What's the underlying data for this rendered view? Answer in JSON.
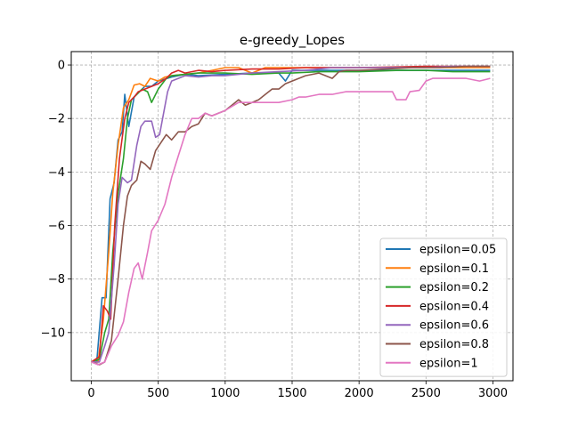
{
  "chart_data": {
    "type": "line",
    "title": "e-greedy_Lopes",
    "xlabel": "",
    "ylabel": "",
    "xlim": [
      -150,
      3150
    ],
    "ylim": [
      -11.8,
      0.5
    ],
    "x_ticks": [
      0,
      500,
      1000,
      1500,
      2000,
      2500,
      3000
    ],
    "x_tick_labels": [
      "0",
      "500",
      "1000",
      "1500",
      "2000",
      "2500",
      "3000"
    ],
    "y_ticks": [
      0,
      -2,
      -4,
      -6,
      -8,
      -10
    ],
    "y_tick_labels": [
      "0",
      "−2",
      "−4",
      "−6",
      "−8",
      "−10"
    ],
    "grid": true,
    "grid_style": "dashed",
    "legend_position": "lower right",
    "series": [
      {
        "name": "epsilon=0.05",
        "color": "#1f77b4",
        "points": [
          [
            0,
            -11.1
          ],
          [
            40,
            -11.1
          ],
          [
            80,
            -8.7
          ],
          [
            110,
            -8.7
          ],
          [
            140,
            -5
          ],
          [
            170,
            -4.4
          ],
          [
            200,
            -2.8
          ],
          [
            230,
            -2.5
          ],
          [
            250,
            -1.1
          ],
          [
            280,
            -2.3
          ],
          [
            320,
            -1.2
          ],
          [
            360,
            -1
          ],
          [
            400,
            -0.8
          ],
          [
            450,
            -0.8
          ],
          [
            500,
            -0.6
          ],
          [
            600,
            -0.45
          ],
          [
            700,
            -0.35
          ],
          [
            800,
            -0.4
          ],
          [
            1000,
            -0.35
          ],
          [
            1200,
            -0.3
          ],
          [
            1400,
            -0.3
          ],
          [
            1450,
            -0.6
          ],
          [
            1500,
            -0.2
          ],
          [
            1800,
            -0.2
          ],
          [
            2000,
            -0.2
          ],
          [
            2200,
            -0.2
          ],
          [
            2400,
            -0.2
          ],
          [
            2700,
            -0.2
          ],
          [
            2980,
            -0.2
          ]
        ]
      },
      {
        "name": "epsilon=0.1",
        "color": "#ff7f0e",
        "points": [
          [
            0,
            -11.1
          ],
          [
            50,
            -11.1
          ],
          [
            90,
            -9.5
          ],
          [
            130,
            -7
          ],
          [
            160,
            -4.8
          ],
          [
            200,
            -3
          ],
          [
            240,
            -1.6
          ],
          [
            280,
            -1.3
          ],
          [
            320,
            -0.75
          ],
          [
            360,
            -0.7
          ],
          [
            400,
            -0.8
          ],
          [
            440,
            -0.5
          ],
          [
            500,
            -0.6
          ],
          [
            550,
            -0.45
          ],
          [
            600,
            -0.4
          ],
          [
            700,
            -0.35
          ],
          [
            800,
            -0.3
          ],
          [
            900,
            -0.2
          ],
          [
            1000,
            -0.1
          ],
          [
            1100,
            -0.1
          ],
          [
            1200,
            -0.3
          ],
          [
            1300,
            -0.1
          ],
          [
            1500,
            -0.1
          ],
          [
            1800,
            -0.1
          ],
          [
            2000,
            -0.1
          ],
          [
            2500,
            -0.1
          ],
          [
            2980,
            -0.1
          ]
        ]
      },
      {
        "name": "epsilon=0.2",
        "color": "#2ca02c",
        "points": [
          [
            0,
            -11.1
          ],
          [
            60,
            -11
          ],
          [
            100,
            -10
          ],
          [
            130,
            -9.5
          ],
          [
            160,
            -7
          ],
          [
            200,
            -4.8
          ],
          [
            240,
            -3.5
          ],
          [
            270,
            -2
          ],
          [
            300,
            -1.3
          ],
          [
            340,
            -1.1
          ],
          [
            380,
            -0.9
          ],
          [
            420,
            -1
          ],
          [
            450,
            -1.4
          ],
          [
            500,
            -0.9
          ],
          [
            560,
            -0.5
          ],
          [
            600,
            -0.4
          ],
          [
            700,
            -0.35
          ],
          [
            800,
            -0.3
          ],
          [
            900,
            -0.3
          ],
          [
            1000,
            -0.3
          ],
          [
            1200,
            -0.35
          ],
          [
            1400,
            -0.3
          ],
          [
            1500,
            -0.3
          ],
          [
            1700,
            -0.25
          ],
          [
            2000,
            -0.25
          ],
          [
            2300,
            -0.2
          ],
          [
            2500,
            -0.2
          ],
          [
            2700,
            -0.25
          ],
          [
            2980,
            -0.25
          ]
        ]
      },
      {
        "name": "epsilon=0.4",
        "color": "#d62728",
        "points": [
          [
            0,
            -11.1
          ],
          [
            60,
            -10.9
          ],
          [
            90,
            -9
          ],
          [
            120,
            -9.2
          ],
          [
            145,
            -9.5
          ],
          [
            175,
            -6
          ],
          [
            210,
            -3.5
          ],
          [
            250,
            -2
          ],
          [
            280,
            -1.4
          ],
          [
            320,
            -1.2
          ],
          [
            350,
            -1
          ],
          [
            400,
            -0.9
          ],
          [
            450,
            -0.8
          ],
          [
            500,
            -0.7
          ],
          [
            560,
            -0.5
          ],
          [
            600,
            -0.3
          ],
          [
            650,
            -0.2
          ],
          [
            700,
            -0.3
          ],
          [
            800,
            -0.2
          ],
          [
            900,
            -0.25
          ],
          [
            1000,
            -0.2
          ],
          [
            1200,
            -0.15
          ],
          [
            1400,
            -0.15
          ],
          [
            1600,
            -0.1
          ],
          [
            1800,
            -0.1
          ],
          [
            2000,
            -0.1
          ],
          [
            2500,
            -0.05
          ],
          [
            2980,
            -0.05
          ]
        ]
      },
      {
        "name": "epsilon=0.6",
        "color": "#9467bd",
        "points": [
          [
            0,
            -11.1
          ],
          [
            60,
            -11.1
          ],
          [
            100,
            -10.5
          ],
          [
            130,
            -10
          ],
          [
            170,
            -7.5
          ],
          [
            200,
            -5.2
          ],
          [
            230,
            -4.2
          ],
          [
            270,
            -4.4
          ],
          [
            300,
            -4.3
          ],
          [
            340,
            -3
          ],
          [
            370,
            -2.3
          ],
          [
            400,
            -2.1
          ],
          [
            450,
            -2.1
          ],
          [
            480,
            -2.7
          ],
          [
            510,
            -2.6
          ],
          [
            540,
            -1.8
          ],
          [
            570,
            -1
          ],
          [
            600,
            -0.6
          ],
          [
            650,
            -0.5
          ],
          [
            700,
            -0.4
          ],
          [
            800,
            -0.45
          ],
          [
            900,
            -0.4
          ],
          [
            1000,
            -0.4
          ],
          [
            1200,
            -0.3
          ],
          [
            1400,
            -0.25
          ],
          [
            1600,
            -0.2
          ],
          [
            1800,
            -0.1
          ],
          [
            2000,
            -0.1
          ],
          [
            2300,
            -0.1
          ],
          [
            2500,
            -0.1
          ],
          [
            2700,
            -0.05
          ],
          [
            2980,
            -0.05
          ]
        ]
      },
      {
        "name": "epsilon=0.8",
        "color": "#8c564b",
        "points": [
          [
            0,
            -11.1
          ],
          [
            60,
            -11.2
          ],
          [
            100,
            -11.1
          ],
          [
            150,
            -10.3
          ],
          [
            200,
            -8
          ],
          [
            240,
            -6
          ],
          [
            270,
            -4.9
          ],
          [
            300,
            -4.5
          ],
          [
            340,
            -4.3
          ],
          [
            370,
            -3.6
          ],
          [
            400,
            -3.7
          ],
          [
            440,
            -3.9
          ],
          [
            480,
            -3.2
          ],
          [
            520,
            -2.9
          ],
          [
            560,
            -2.6
          ],
          [
            600,
            -2.8
          ],
          [
            650,
            -2.5
          ],
          [
            700,
            -2.5
          ],
          [
            750,
            -2.3
          ],
          [
            800,
            -2.2
          ],
          [
            850,
            -1.8
          ],
          [
            900,
            -1.9
          ],
          [
            950,
            -1.8
          ],
          [
            1000,
            -1.7
          ],
          [
            1050,
            -1.5
          ],
          [
            1100,
            -1.3
          ],
          [
            1150,
            -1.5
          ],
          [
            1200,
            -1.4
          ],
          [
            1250,
            -1.3
          ],
          [
            1300,
            -1.1
          ],
          [
            1350,
            -0.9
          ],
          [
            1400,
            -0.9
          ],
          [
            1450,
            -0.7
          ],
          [
            1500,
            -0.6
          ],
          [
            1550,
            -0.5
          ],
          [
            1600,
            -0.4
          ],
          [
            1700,
            -0.3
          ],
          [
            1800,
            -0.5
          ],
          [
            1850,
            -0.25
          ],
          [
            1900,
            -0.2
          ],
          [
            2000,
            -0.2
          ],
          [
            2200,
            -0.15
          ],
          [
            2400,
            -0.1
          ],
          [
            2600,
            -0.1
          ],
          [
            2800,
            -0.05
          ],
          [
            2980,
            -0.05
          ]
        ]
      },
      {
        "name": "epsilon=1",
        "color": "#e377c2",
        "points": [
          [
            0,
            -11.1
          ],
          [
            50,
            -11.2
          ],
          [
            100,
            -11.1
          ],
          [
            150,
            -10.5
          ],
          [
            200,
            -10.1
          ],
          [
            240,
            -9.6
          ],
          [
            280,
            -8.5
          ],
          [
            320,
            -7.6
          ],
          [
            350,
            -7.4
          ],
          [
            380,
            -8
          ],
          [
            420,
            -7
          ],
          [
            450,
            -6.2
          ],
          [
            500,
            -5.8
          ],
          [
            550,
            -5.2
          ],
          [
            600,
            -4.2
          ],
          [
            650,
            -3.4
          ],
          [
            700,
            -2.6
          ],
          [
            750,
            -2
          ],
          [
            800,
            -2
          ],
          [
            850,
            -1.8
          ],
          [
            900,
            -1.9
          ],
          [
            950,
            -1.8
          ],
          [
            1000,
            -1.7
          ],
          [
            1100,
            -1.4
          ],
          [
            1200,
            -1.4
          ],
          [
            1300,
            -1.4
          ],
          [
            1400,
            -1.4
          ],
          [
            1500,
            -1.3
          ],
          [
            1550,
            -1.2
          ],
          [
            1600,
            -1.2
          ],
          [
            1700,
            -1.1
          ],
          [
            1800,
            -1.1
          ],
          [
            1900,
            -1.0
          ],
          [
            2000,
            -1.0
          ],
          [
            2100,
            -1.0
          ],
          [
            2200,
            -1.0
          ],
          [
            2250,
            -1.0
          ],
          [
            2280,
            -1.3
          ],
          [
            2350,
            -1.3
          ],
          [
            2380,
            -1.0
          ],
          [
            2450,
            -0.95
          ],
          [
            2500,
            -0.6
          ],
          [
            2550,
            -0.5
          ],
          [
            2600,
            -0.5
          ],
          [
            2700,
            -0.5
          ],
          [
            2800,
            -0.5
          ],
          [
            2900,
            -0.6
          ],
          [
            2980,
            -0.5
          ]
        ]
      }
    ]
  }
}
